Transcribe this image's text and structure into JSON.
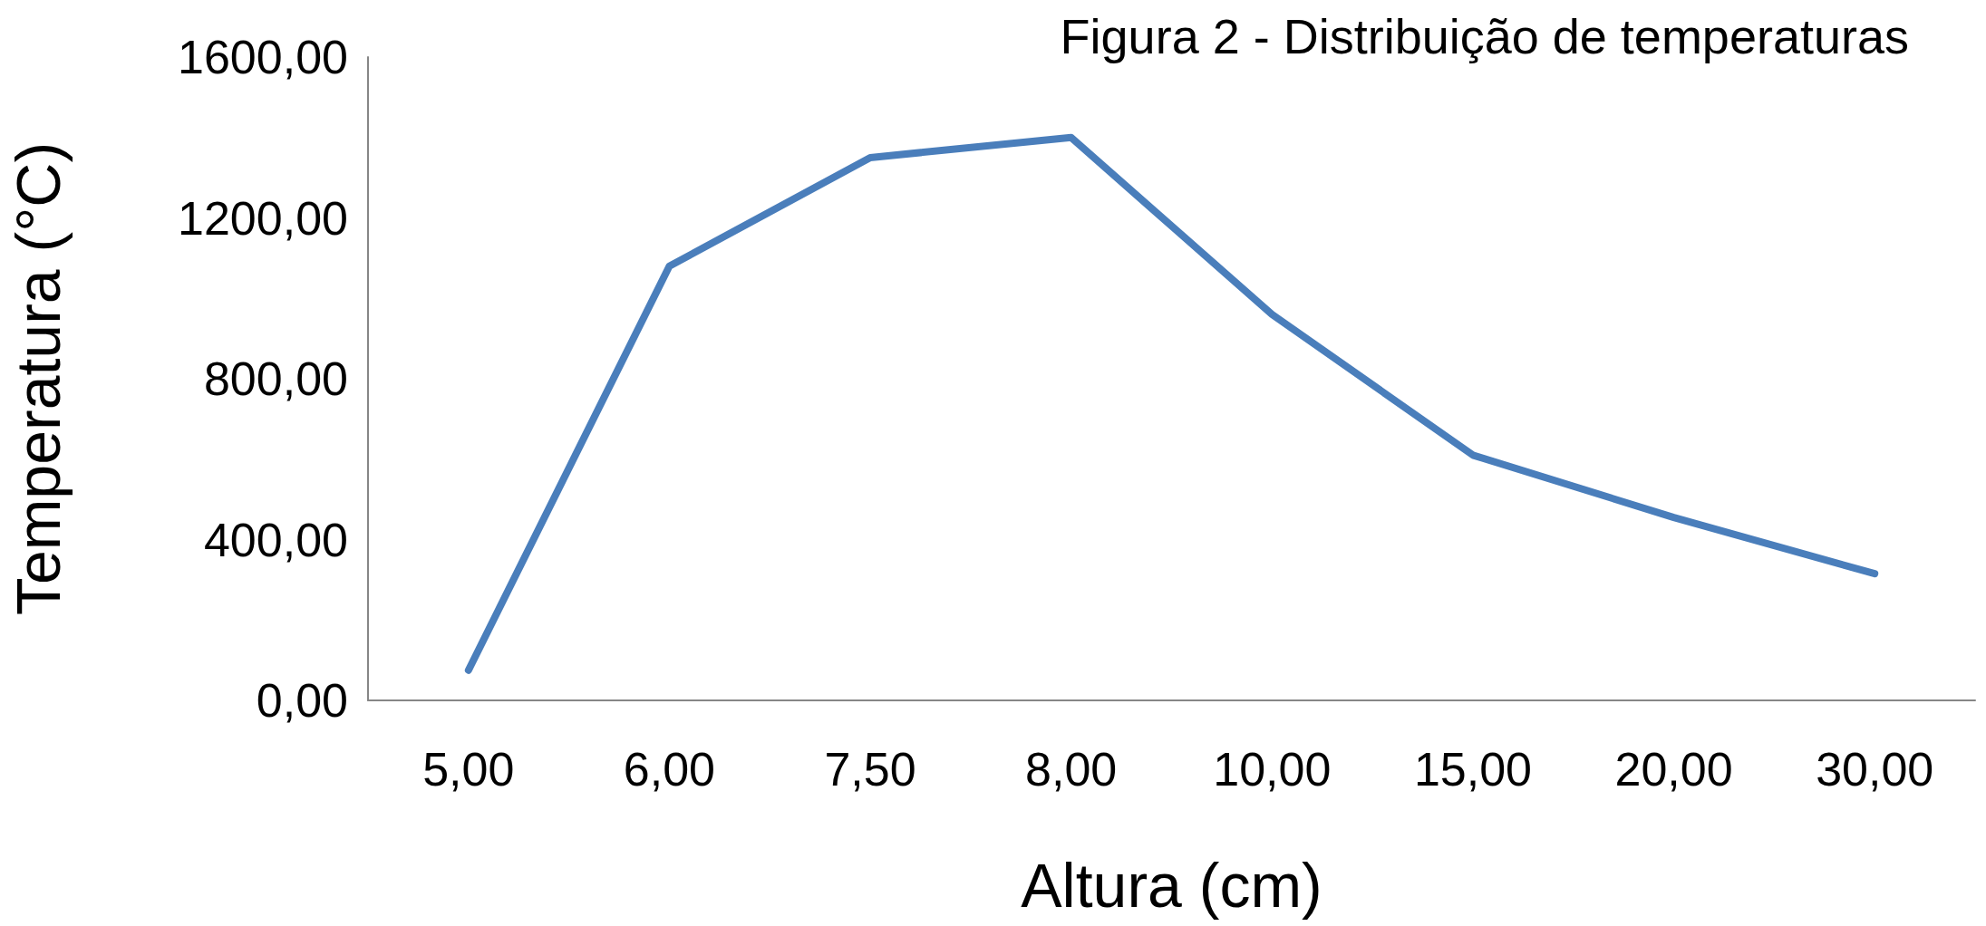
{
  "chart_data": {
    "type": "line",
    "title": "Figura 2 - Distribuição de temperaturas",
    "xlabel": "Altura (cm)",
    "ylabel": "Temperatura (°C)",
    "categories": [
      "5,00",
      "6,00",
      "7,50",
      "8,00",
      "10,00",
      "15,00",
      "20,00",
      "30,00"
    ],
    "series": [
      {
        "color": "#4a7ebb",
        "values": [
          75,
          1080,
          1350,
          1400,
          960,
          610,
          455,
          315
        ]
      }
    ],
    "ylim": [
      0,
      1600
    ],
    "yticks": [
      {
        "value": 0,
        "label": "0,00"
      },
      {
        "value": 400,
        "label": "400,00"
      },
      {
        "value": 800,
        "label": "800,00"
      },
      {
        "value": 1200,
        "label": "1200,00"
      },
      {
        "value": 1600,
        "label": "1600,00"
      }
    ],
    "grid": false,
    "marker": "none",
    "line_style": "solid"
  }
}
